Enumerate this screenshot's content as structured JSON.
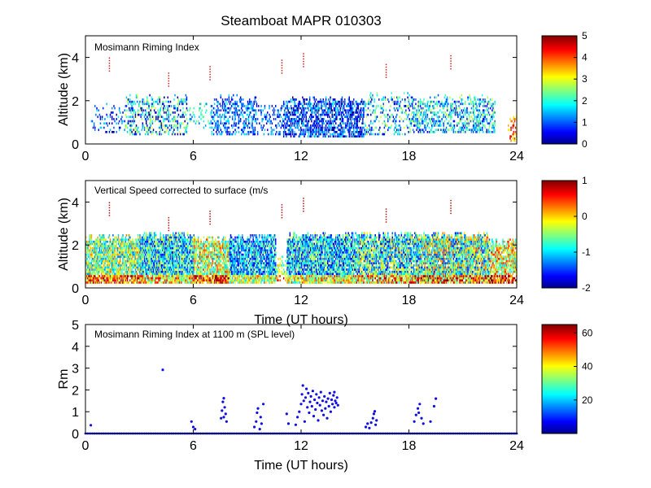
{
  "figure_title": "Steamboat MAPR 010303",
  "chart_data": [
    {
      "type": "heatmap",
      "title": "Mosimann Riming Index",
      "ylabel": "Altitude (km)",
      "xlabel": "",
      "xlim": [
        0,
        24
      ],
      "ylim": [
        0,
        5
      ],
      "xticks": [
        0,
        6,
        12,
        18,
        24
      ],
      "yticks": [
        0,
        2,
        4
      ],
      "colorbar": {
        "range": [
          0,
          5
        ],
        "ticks": [
          0,
          1,
          2,
          3,
          4,
          5
        ]
      },
      "segments": [
        {
          "t0": 0.3,
          "t1": 2.2,
          "z0": 0.5,
          "z1": 1.9,
          "base": 1.0,
          "spread": 0.9,
          "density": 0.18
        },
        {
          "t0": 2.2,
          "t1": 5.6,
          "z0": 0.4,
          "z1": 2.3,
          "base": 1.5,
          "spread": 1.6,
          "density": 0.32
        },
        {
          "t0": 5.6,
          "t1": 7.0,
          "z0": 0.7,
          "z1": 2.0,
          "base": 1.8,
          "spread": 0.8,
          "density": 0.2
        },
        {
          "t0": 7.0,
          "t1": 9.5,
          "z0": 0.4,
          "z1": 2.3,
          "base": 1.1,
          "spread": 0.8,
          "density": 0.35
        },
        {
          "t0": 9.5,
          "t1": 11.0,
          "z0": 0.4,
          "z1": 1.9,
          "base": 1.0,
          "spread": 0.7,
          "density": 0.22
        },
        {
          "t0": 11.0,
          "t1": 15.5,
          "z0": 0.3,
          "z1": 2.2,
          "base": 0.9,
          "spread": 0.9,
          "density": 0.55
        },
        {
          "t0": 15.5,
          "t1": 18.0,
          "z0": 0.4,
          "z1": 2.4,
          "base": 1.6,
          "spread": 1.4,
          "density": 0.25
        },
        {
          "t0": 18.0,
          "t1": 22.8,
          "z0": 0.5,
          "z1": 2.3,
          "base": 1.7,
          "spread": 1.2,
          "density": 0.4
        },
        {
          "t0": 23.5,
          "t1": 24.0,
          "z0": 0.1,
          "z1": 1.4,
          "base": 3.8,
          "spread": 1.0,
          "density": 0.3
        }
      ]
    },
    {
      "type": "heatmap",
      "title": "Vertical Speed corrected to surface (m/s",
      "ylabel": "Altitude (km)",
      "xlabel": "Time (UT hours)",
      "xlim": [
        0,
        24
      ],
      "ylim": [
        0,
        5
      ],
      "xticks": [
        0,
        6,
        12,
        18,
        24
      ],
      "yticks": [
        0,
        2,
        4
      ],
      "colorbar": {
        "range": [
          -2,
          1
        ],
        "ticks": [
          -2,
          -1,
          0,
          1
        ]
      },
      "segments": [
        {
          "t0": 0.0,
          "t1": 3.0,
          "z0": 0.2,
          "z1": 2.5,
          "base": -0.5,
          "spread": 0.8,
          "density": 0.8
        },
        {
          "t0": 3.0,
          "t1": 6.0,
          "z0": 0.2,
          "z1": 2.6,
          "base": -0.9,
          "spread": 0.8,
          "density": 0.85
        },
        {
          "t0": 6.0,
          "t1": 8.0,
          "z0": 0.2,
          "z1": 2.4,
          "base": -0.3,
          "spread": 0.8,
          "density": 0.75
        },
        {
          "t0": 8.0,
          "t1": 10.6,
          "z0": 0.2,
          "z1": 2.5,
          "base": -1.1,
          "spread": 0.7,
          "density": 0.8
        },
        {
          "t0": 10.6,
          "t1": 11.2,
          "z0": 0.3,
          "z1": 1.5,
          "base": -0.4,
          "spread": 0.6,
          "density": 0.4
        },
        {
          "t0": 11.2,
          "t1": 15.0,
          "z0": 0.2,
          "z1": 2.6,
          "base": -1.0,
          "spread": 0.8,
          "density": 0.85
        },
        {
          "t0": 15.0,
          "t1": 18.5,
          "z0": 0.2,
          "z1": 2.6,
          "base": -0.8,
          "spread": 0.9,
          "density": 0.8
        },
        {
          "t0": 18.5,
          "t1": 22.5,
          "z0": 0.2,
          "z1": 2.6,
          "base": -0.6,
          "spread": 1.0,
          "density": 0.85
        },
        {
          "t0": 22.5,
          "t1": 24.0,
          "z0": 0.2,
          "z1": 2.3,
          "base": -0.2,
          "spread": 0.8,
          "density": 0.7
        }
      ]
    },
    {
      "type": "scatter",
      "title": "Mosimann Riming Index at 1100 m (SPL level)",
      "ylabel": "Rm",
      "xlabel": "Time (UT hours)",
      "xlim": [
        0,
        24
      ],
      "ylim": [
        0,
        5
      ],
      "xticks": [
        0,
        6,
        12,
        18,
        24
      ],
      "yticks": [
        0,
        1,
        2,
        3,
        4,
        5
      ],
      "colorbar": {
        "range": [
          0,
          65
        ],
        "ticks": [
          20,
          40,
          60
        ]
      },
      "baseline": {
        "y": 0,
        "x_start": 0.0,
        "x_end": 24.0,
        "step": 0.1
      },
      "points": [
        [
          0.3,
          0.38
        ],
        [
          4.3,
          2.92
        ],
        [
          5.9,
          0.55
        ],
        [
          6.0,
          0.3
        ],
        [
          6.1,
          0.2
        ],
        [
          7.55,
          0.7
        ],
        [
          7.6,
          1.05
        ],
        [
          7.65,
          1.45
        ],
        [
          7.7,
          1.62
        ],
        [
          7.75,
          1.2
        ],
        [
          7.8,
          0.9
        ],
        [
          7.85,
          0.55
        ],
        [
          7.7,
          0.75
        ],
        [
          9.4,
          0.3
        ],
        [
          9.5,
          0.55
        ],
        [
          9.55,
          0.95
        ],
        [
          9.6,
          1.15
        ],
        [
          9.7,
          0.2
        ],
        [
          9.75,
          0.75
        ],
        [
          9.8,
          0.45
        ],
        [
          9.9,
          1.35
        ],
        [
          11.2,
          0.9
        ],
        [
          11.3,
          0.45
        ],
        [
          11.7,
          0.4
        ],
        [
          11.8,
          0.75
        ],
        [
          11.9,
          1.0
        ],
        [
          12.0,
          1.35
        ],
        [
          12.05,
          1.8
        ],
        [
          12.1,
          2.2
        ],
        [
          12.15,
          1.5
        ],
        [
          12.2,
          0.55
        ],
        [
          12.25,
          1.65
        ],
        [
          12.3,
          2.05
        ],
        [
          12.35,
          1.2
        ],
        [
          12.4,
          1.85
        ],
        [
          12.45,
          0.95
        ],
        [
          12.5,
          1.45
        ],
        [
          12.55,
          1.7
        ],
        [
          12.6,
          1.25
        ],
        [
          12.65,
          1.95
        ],
        [
          12.7,
          0.8
        ],
        [
          12.75,
          1.55
        ],
        [
          12.8,
          1.1
        ],
        [
          12.85,
          1.8
        ],
        [
          12.9,
          1.4
        ],
        [
          12.95,
          0.6
        ],
        [
          13.0,
          1.65
        ],
        [
          13.05,
          1.3
        ],
        [
          13.1,
          1.9
        ],
        [
          13.15,
          1.05
        ],
        [
          13.2,
          1.5
        ],
        [
          13.25,
          0.85
        ],
        [
          13.3,
          1.7
        ],
        [
          13.35,
          1.15
        ],
        [
          13.4,
          1.45
        ],
        [
          13.45,
          0.7
        ],
        [
          13.5,
          1.6
        ],
        [
          13.55,
          1.25
        ],
        [
          13.6,
          1.85
        ],
        [
          13.65,
          1.0
        ],
        [
          13.7,
          1.55
        ],
        [
          13.75,
          1.35
        ],
        [
          13.8,
          1.75
        ],
        [
          13.85,
          1.2
        ],
        [
          13.9,
          1.5
        ],
        [
          13.95,
          1.4
        ],
        [
          14.0,
          1.65
        ],
        [
          14.05,
          1.3
        ],
        [
          13.85,
          1.9
        ],
        [
          15.6,
          0.3
        ],
        [
          15.7,
          0.45
        ],
        [
          15.8,
          0.25
        ],
        [
          15.9,
          0.5
        ],
        [
          16.0,
          0.7
        ],
        [
          16.05,
          0.9
        ],
        [
          16.1,
          1.02
        ],
        [
          16.15,
          0.4
        ],
        [
          16.2,
          0.6
        ],
        [
          18.3,
          0.55
        ],
        [
          18.4,
          0.85
        ],
        [
          18.5,
          1.15
        ],
        [
          18.55,
          0.95
        ],
        [
          18.6,
          1.35
        ],
        [
          18.7,
          0.7
        ],
        [
          18.8,
          0.45
        ],
        [
          19.2,
          0.55
        ],
        [
          19.4,
          1.25
        ],
        [
          19.5,
          1.6
        ]
      ]
    }
  ]
}
